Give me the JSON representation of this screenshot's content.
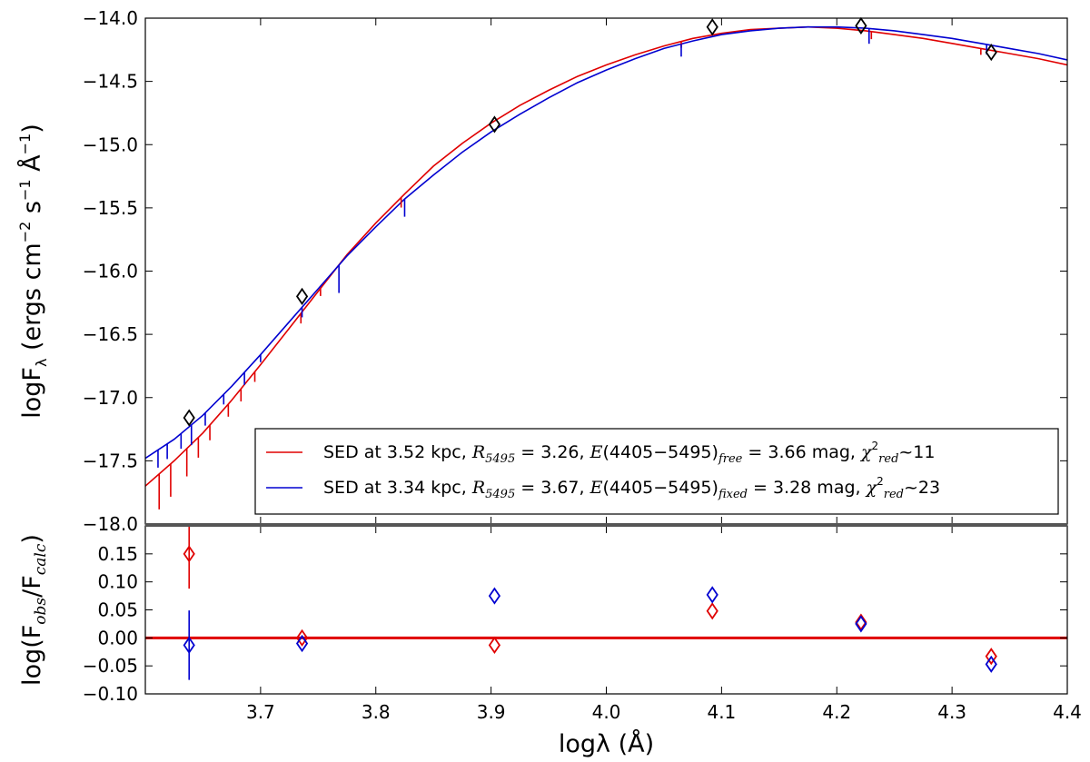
{
  "chart_data": [
    {
      "panel": "top",
      "type": "line",
      "ylabel": "logF_λ (ergs cm^-2 s^-1 Å^-1)",
      "xlim": [
        3.6,
        4.4
      ],
      "ylim": [
        -18.0,
        -14.0
      ],
      "yticks": [
        "-14.0",
        "-14.5",
        "-15.0",
        "-15.5",
        "-16.0",
        "-16.5",
        "-17.0",
        "-17.5",
        "-18.0"
      ],
      "legend_position": "lower-right",
      "series": [
        {
          "name": "SED at 3.52 kpc, R5495 = 3.26, E(4405−5495)free = 3.66 mag, χ²red~11",
          "color": "#e00000",
          "x": [
            3.6,
            3.625,
            3.65,
            3.675,
            3.7,
            3.725,
            3.75,
            3.775,
            3.8,
            3.825,
            3.85,
            3.875,
            3.9,
            3.925,
            3.95,
            3.975,
            4.0,
            4.025,
            4.05,
            4.075,
            4.1,
            4.125,
            4.15,
            4.175,
            4.2,
            4.225,
            4.25,
            4.275,
            4.3,
            4.325,
            4.35,
            4.375,
            4.4
          ],
          "y": [
            -17.7,
            -17.5,
            -17.28,
            -17.02,
            -16.74,
            -16.45,
            -16.16,
            -15.87,
            -15.62,
            -15.39,
            -15.17,
            -14.99,
            -14.83,
            -14.69,
            -14.57,
            -14.46,
            -14.37,
            -14.29,
            -14.22,
            -14.16,
            -14.12,
            -14.09,
            -14.08,
            -14.07,
            -14.08,
            -14.1,
            -14.13,
            -14.16,
            -14.2,
            -14.24,
            -14.28,
            -14.32,
            -14.37
          ]
        },
        {
          "name": "SED at 3.34 kpc, R5495 = 3.67, E(4405−5495)fixed = 3.28 mag, χ²red~23",
          "color": "#0000d0",
          "x": [
            3.6,
            3.625,
            3.65,
            3.675,
            3.7,
            3.725,
            3.75,
            3.775,
            3.8,
            3.825,
            3.85,
            3.875,
            3.9,
            3.925,
            3.95,
            3.975,
            4.0,
            4.025,
            4.05,
            4.075,
            4.1,
            4.125,
            4.15,
            4.175,
            4.2,
            4.225,
            4.25,
            4.275,
            4.3,
            4.325,
            4.35,
            4.375,
            4.4
          ],
          "y": [
            -17.48,
            -17.33,
            -17.14,
            -16.91,
            -16.66,
            -16.4,
            -16.14,
            -15.88,
            -15.65,
            -15.43,
            -15.24,
            -15.06,
            -14.9,
            -14.76,
            -14.63,
            -14.51,
            -14.41,
            -14.32,
            -14.24,
            -14.18,
            -14.13,
            -14.1,
            -14.08,
            -14.07,
            -14.07,
            -14.08,
            -14.1,
            -14.13,
            -14.16,
            -14.2,
            -14.24,
            -14.28,
            -14.33
          ]
        }
      ],
      "absorption_lines": {
        "red": [
          [
            3.612,
            0.28
          ],
          [
            3.622,
            0.26
          ],
          [
            3.636,
            0.22
          ],
          [
            3.646,
            0.16
          ],
          [
            3.656,
            0.12
          ],
          [
            3.672,
            0.1
          ],
          [
            3.683,
            0.1
          ],
          [
            3.695,
            0.08
          ],
          [
            3.735,
            0.08
          ],
          [
            3.752,
            0.06
          ],
          [
            3.822,
            0.08
          ],
          [
            4.065,
            0.05
          ],
          [
            4.23,
            0.06
          ],
          [
            4.325,
            0.05
          ]
        ],
        "blue": [
          [
            3.611,
            0.14
          ],
          [
            3.619,
            0.12
          ],
          [
            3.631,
            0.12
          ],
          [
            3.64,
            0.16
          ],
          [
            3.652,
            0.1
          ],
          [
            3.668,
            0.08
          ],
          [
            3.686,
            0.1
          ],
          [
            3.7,
            0.06
          ],
          [
            3.736,
            0.08
          ],
          [
            3.768,
            0.22
          ],
          [
            3.825,
            0.14
          ],
          [
            4.065,
            0.1
          ],
          [
            4.228,
            0.12
          ],
          [
            4.33,
            0.08
          ]
        ]
      },
      "observed_points": {
        "x": [
          3.638,
          3.736,
          3.903,
          4.092,
          4.221,
          4.334
        ],
        "y": [
          -17.16,
          -16.2,
          -14.84,
          -14.07,
          -14.06,
          -14.27
        ]
      }
    },
    {
      "panel": "bottom",
      "type": "scatter",
      "xlabel": "logλ (Å)",
      "ylabel": "log(F_obs/F_calc)",
      "xlim": [
        3.6,
        4.4
      ],
      "ylim": [
        -0.1,
        0.2
      ],
      "xticks": [
        "3.7",
        "3.8",
        "3.9",
        "4.0",
        "4.1",
        "4.2",
        "4.3",
        "4.4"
      ],
      "yticks": [
        "0.15",
        "0.10",
        "0.05",
        "0.00",
        "-0.05",
        "-0.10"
      ],
      "reference_line": 0.0,
      "series": [
        {
          "color": "#e00000",
          "x": [
            3.638,
            3.736,
            3.903,
            4.092,
            4.221,
            4.334
          ],
          "y": [
            0.15,
            0.0,
            -0.013,
            0.048,
            0.028,
            -0.033
          ],
          "err": [
            0.062,
            0.0,
            0.0,
            0.0,
            0.0,
            0.0
          ]
        },
        {
          "color": "#0000d0",
          "x": [
            3.638,
            3.736,
            3.903,
            4.092,
            4.221,
            4.334
          ],
          "y": [
            -0.013,
            -0.01,
            0.075,
            0.077,
            0.025,
            -0.047
          ],
          "err": [
            0.062,
            0.0,
            0.0,
            0.0,
            0.0,
            0.0
          ]
        }
      ]
    }
  ]
}
